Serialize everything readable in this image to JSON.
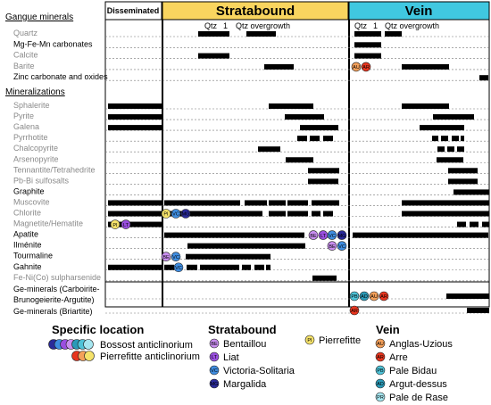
{
  "columns": {
    "disseminated": {
      "label": "Disseminated",
      "color": "#ffffff"
    },
    "stratabound": {
      "label": "Stratabound",
      "color": "#f9d55f"
    },
    "vein": {
      "label": "Vein",
      "color": "#40c8e0"
    }
  },
  "gangue_header": "Gangue minerals",
  "mineral_header": "Mineralizations",
  "overgrowth_labels": {
    "strat_qtz": "Qtz",
    "strat_one": "1",
    "strat_over": "Qtz overgrowth",
    "vein_qtz": "Qtz",
    "vein_one": "1",
    "vein_over": "Qtz overgrowth"
  },
  "rows": [
    {
      "key": "quartz",
      "label": "Quartz",
      "gray": true,
      "bars": [
        [
          222,
          257
        ],
        [
          276,
          309
        ],
        [
          397,
          427
        ],
        [
          431,
          450
        ]
      ],
      "markers": []
    },
    {
      "key": "mgfemn",
      "label": "Mg-Fe-Mn carbonates",
      "gray": false,
      "bars": [
        [
          397,
          427
        ]
      ],
      "markers": []
    },
    {
      "key": "calcite",
      "label": "Calcite",
      "gray": true,
      "bars": [
        [
          222,
          257
        ],
        [
          397,
          427
        ]
      ],
      "markers": []
    },
    {
      "key": "barite",
      "label": "Barite",
      "gray": true,
      "bars": [
        [
          296,
          329
        ],
        [
          450,
          503
        ]
      ],
      "markers": [
        {
          "x": 399,
          "code": "AU",
          "color": "#f4a05a"
        },
        {
          "x": 410,
          "code": "AR",
          "color": "#e8351e"
        }
      ]
    },
    {
      "key": "zinc",
      "label": "Zinc carbonate and oxides",
      "gray": false,
      "bars": [
        [
          537,
          547
        ]
      ],
      "markers": []
    },
    {
      "key": "sphalerite",
      "label": "Sphalerite",
      "gray": true,
      "bars": [
        [
          121,
          181
        ],
        [
          301,
          351
        ],
        [
          450,
          503
        ]
      ],
      "markers": []
    },
    {
      "key": "pyrite",
      "label": "Pyrite",
      "gray": true,
      "bars": [
        [
          121,
          181
        ],
        [
          319,
          363
        ],
        [
          485,
          531
        ]
      ],
      "markers": []
    },
    {
      "key": "galena",
      "label": "Galena",
      "gray": true,
      "bars": [
        [
          121,
          181
        ],
        [
          336,
          379
        ],
        [
          470,
          520
        ]
      ],
      "markers": []
    },
    {
      "key": "pyrrhotite",
      "label": "Pyrrhotite",
      "gray": true,
      "bars": [
        [
          333,
          344
        ],
        [
          347,
          358
        ],
        [
          362,
          373
        ],
        [
          484,
          491
        ],
        [
          494,
          502
        ],
        [
          506,
          514
        ],
        [
          516,
          520
        ]
      ],
      "markers": []
    },
    {
      "key": "chalcopyrite",
      "label": "Chalcopyrite",
      "gray": true,
      "bars": [
        [
          289,
          314
        ],
        [
          490,
          498
        ],
        [
          501,
          509
        ],
        [
          512,
          520
        ]
      ],
      "markers": []
    },
    {
      "key": "arsenopyrite",
      "label": "Arsenopyrite",
      "gray": true,
      "bars": [
        [
          320,
          351
        ],
        [
          489,
          519
        ]
      ],
      "markers": []
    },
    {
      "key": "tennantite",
      "label": "Tennantite/Tetrahedrite",
      "gray": true,
      "bars": [
        [
          345,
          380
        ],
        [
          502,
          535
        ]
      ],
      "markers": []
    },
    {
      "key": "pbbi",
      "label": "Pb-Bi sulfosalts",
      "gray": true,
      "bars": [
        [
          345,
          379
        ],
        [
          502,
          535
        ]
      ],
      "markers": []
    },
    {
      "key": "graphite",
      "label": "Graphite",
      "gray": false,
      "bars": [
        [
          508,
          548
        ]
      ],
      "markers": []
    },
    {
      "key": "muscovite",
      "label": "Muscovite",
      "gray": true,
      "bars": [
        [
          121,
          181
        ],
        [
          184,
          269
        ],
        [
          274,
          299
        ],
        [
          301,
          320
        ],
        [
          322,
          345
        ],
        [
          349,
          380
        ],
        [
          450,
          548
        ]
      ],
      "markers": []
    },
    {
      "key": "chlorite",
      "label": "Chlorite",
      "gray": true,
      "bars": [
        [
          121,
          181
        ],
        [
          184,
          294
        ],
        [
          301,
          320
        ],
        [
          322,
          345
        ],
        [
          349,
          359
        ],
        [
          362,
          373
        ],
        [
          450,
          548
        ]
      ],
      "markers": [
        {
          "x": 186,
          "code": "PI",
          "color": "#f5e26a"
        },
        {
          "x": 197,
          "code": "VC",
          "color": "#3f8de0"
        },
        {
          "x": 208,
          "code": "MG",
          "color": "#2a2a9a"
        }
      ]
    },
    {
      "key": "magnetite",
      "label": "Magnetite/Hematite",
      "gray": true,
      "bars": [
        [
          121,
          181
        ],
        [
          512,
          522
        ],
        [
          526,
          536
        ],
        [
          540,
          548
        ]
      ],
      "markers": [
        {
          "x": 129,
          "code": "PI",
          "color": "#f5e26a"
        },
        {
          "x": 141,
          "code": "LT",
          "color": "#9a4fe0"
        }
      ]
    },
    {
      "key": "apatite",
      "label": "Apatite",
      "gray": false,
      "bars": [
        [
          184,
          341
        ],
        [
          395,
          547
        ]
      ],
      "markers": [
        {
          "x": 351,
          "code": "BE",
          "color": "#c98ef0"
        },
        {
          "x": 362,
          "code": "LT",
          "color": "#9a4fe0"
        },
        {
          "x": 372,
          "code": "VC",
          "color": "#3f8de0"
        },
        {
          "x": 383,
          "code": "MG",
          "color": "#2a2a9a"
        }
      ]
    },
    {
      "key": "ilmenite",
      "label": "Ilménite",
      "gray": false,
      "bars": [
        [
          210,
          342
        ]
      ],
      "markers": [
        {
          "x": 372,
          "code": "BE",
          "color": "#c98ef0"
        },
        {
          "x": 383,
          "code": "VC",
          "color": "#3f8de0"
        }
      ]
    },
    {
      "key": "tourmaline",
      "label": "Tourmaline",
      "gray": false,
      "bars": [
        [
          208,
          303
        ]
      ],
      "markers": [
        {
          "x": 186,
          "code": "BE",
          "color": "#c98ef0"
        },
        {
          "x": 197,
          "code": "VC",
          "color": "#3f8de0"
        }
      ]
    },
    {
      "key": "gahnite",
      "label": "Gahnite",
      "gray": false,
      "bars": [
        [
          121,
          181
        ],
        [
          184,
          195
        ],
        [
          209,
          221
        ],
        [
          224,
          268
        ],
        [
          271,
          281
        ],
        [
          285,
          296
        ],
        [
          298,
          303
        ]
      ],
      "markers": [
        {
          "x": 200,
          "code": "VC",
          "color": "#3f8de0"
        }
      ]
    },
    {
      "key": "feni",
      "label": "Fe-Ni(Co) sulpharsenide",
      "gray": true,
      "bars": [
        [
          350,
          377
        ]
      ],
      "markers": []
    }
  ],
  "ge_rows": [
    {
      "key": "ge1",
      "label1": "Ge-minerals (Carboirite-",
      "label2": "Brunogeierite-Argutite)",
      "bars": [
        [
          500,
          548
        ]
      ],
      "markers": [
        {
          "x": 397,
          "code": "PB",
          "color": "#4ec3d8"
        },
        {
          "x": 408,
          "code": "AD",
          "color": "#2a9ab8"
        },
        {
          "x": 419,
          "code": "AU",
          "color": "#f4a05a"
        },
        {
          "x": 430,
          "code": "AR",
          "color": "#e8351e"
        }
      ]
    },
    {
      "key": "ge2",
      "label1": "Ge-minerals (Briartite)",
      "bars": [
        [
          523,
          548
        ]
      ],
      "markers": [
        {
          "x": 397,
          "code": "AR",
          "color": "#e8351e"
        }
      ]
    }
  ],
  "legend": {
    "specific_title": "Specific location",
    "bossost_label": "Bossost anticlinorium",
    "pierrefitte_label": "Pierrefitte anticlinorium",
    "bossost_colors": [
      "#2a2a9a",
      "#3f8de0",
      "#9a4fe0",
      "#c98ef0",
      "#2a9ab8",
      "#4ec3d8",
      "#a6e6f0"
    ],
    "pierrefitte_colors": [
      "#e8351e",
      "#f4a05a",
      "#f5e26a"
    ],
    "stratabound_title": "Stratabound",
    "stratabound_items": [
      {
        "code": "BE",
        "label": "Bentaillou",
        "color": "#c98ef0"
      },
      {
        "code": "LT",
        "label": "Liat",
        "color": "#9a4fe0"
      },
      {
        "code": "VC",
        "label": "Victoria-Solitaria",
        "color": "#3f8de0"
      },
      {
        "code": "MG",
        "label": "Margalida",
        "color": "#2a2a9a"
      }
    ],
    "pierrefitte_item": {
      "code": "PI",
      "label": "Pierrefitte",
      "color": "#f5e26a"
    },
    "vein_title": "Vein",
    "vein_items": [
      {
        "code": "AU",
        "label": "Anglas-Uzious",
        "color": "#f4a05a"
      },
      {
        "code": "AR",
        "label": "Arre",
        "color": "#e8351e"
      },
      {
        "code": "PB",
        "label": "Pale Bidau",
        "color": "#4ec3d8"
      },
      {
        "code": "AD",
        "label": "Argut-dessus",
        "color": "#2a9ab8"
      },
      {
        "code": "PR",
        "label": "Pale de Rase",
        "color": "#a6e6f0"
      }
    ]
  }
}
